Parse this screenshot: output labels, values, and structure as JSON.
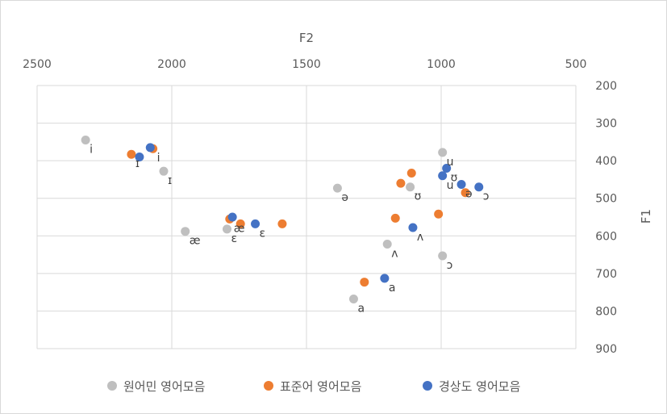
{
  "chart_data": {
    "type": "scatter",
    "xlabel": "F2",
    "ylabel": "F1",
    "xlim": [
      2500,
      500
    ],
    "ylim": [
      900,
      200
    ],
    "x_reversed": true,
    "y_reversed": true,
    "x_axis_position": "top",
    "y_axis_position": "right",
    "x_ticks": [
      2500,
      2000,
      1500,
      1000,
      500
    ],
    "y_ticks": [
      200,
      300,
      400,
      500,
      600,
      700,
      800,
      900
    ],
    "grid": "major gridlines on both axes",
    "legend_position": "bottom",
    "series": [
      {
        "name": "원어민 영어모음",
        "color": "#bfbfbf",
        "points": [
          {
            "x": 2320,
            "y": 345,
            "label": "i"
          },
          {
            "x": 2030,
            "y": 428,
            "label": "ɪ"
          },
          {
            "x": 1950,
            "y": 588,
            "label": "æ"
          },
          {
            "x": 1795,
            "y": 582,
            "label": "ɛ"
          },
          {
            "x": 1385,
            "y": 473,
            "label": "ə"
          },
          {
            "x": 1115,
            "y": 470,
            "label": "ʊ"
          },
          {
            "x": 1200,
            "y": 622,
            "label": "ʌ"
          },
          {
            "x": 1325,
            "y": 768,
            "label": "a"
          },
          {
            "x": 995,
            "y": 378,
            "label": "u"
          },
          {
            "x": 995,
            "y": 653,
            "label": "ɔ"
          }
        ]
      },
      {
        "name": "표준어 영어모음",
        "color": "#ed7d31",
        "points": [
          {
            "x": 2150,
            "y": 383,
            "label": "ɪ"
          },
          {
            "x": 2070,
            "y": 368,
            "label": "i"
          },
          {
            "x": 1785,
            "y": 555,
            "label": "æ"
          },
          {
            "x": 1745,
            "y": 568,
            "label": ""
          },
          {
            "x": 1590,
            "y": 568,
            "label": ""
          },
          {
            "x": 1285,
            "y": 723,
            "label": ""
          },
          {
            "x": 1170,
            "y": 553,
            "label": ""
          },
          {
            "x": 1150,
            "y": 460,
            "label": ""
          },
          {
            "x": 1110,
            "y": 433,
            "label": ""
          },
          {
            "x": 1010,
            "y": 542,
            "label": ""
          },
          {
            "x": 910,
            "y": 485,
            "label": ""
          }
        ]
      },
      {
        "name": "경상도 영어모음",
        "color": "#4472c4",
        "points": [
          {
            "x": 2080,
            "y": 365,
            "label": ""
          },
          {
            "x": 2120,
            "y": 390,
            "label": ""
          },
          {
            "x": 1775,
            "y": 550,
            "label": ""
          },
          {
            "x": 1690,
            "y": 568,
            "label": "ɛ"
          },
          {
            "x": 1210,
            "y": 713,
            "label": "a"
          },
          {
            "x": 1105,
            "y": 578,
            "label": "ʌ"
          },
          {
            "x": 980,
            "y": 420,
            "label": "ʊ"
          },
          {
            "x": 995,
            "y": 440,
            "label": "u"
          },
          {
            "x": 925,
            "y": 463,
            "label": "ə"
          },
          {
            "x": 860,
            "y": 470,
            "label": "ɔ"
          }
        ]
      }
    ]
  }
}
